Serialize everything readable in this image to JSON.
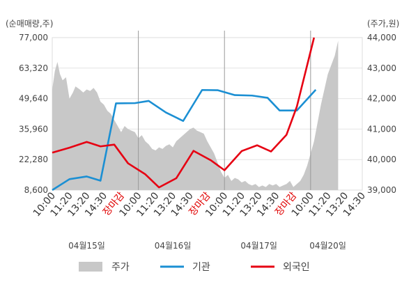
{
  "chart_data": {
    "type": "line",
    "left_axis_unit": "(순매매량,주)",
    "right_axis_unit": "(주가,원)",
    "left_axis": {
      "ticks": [
        8600,
        22280,
        35960,
        49640,
        63320,
        77000
      ],
      "tick_labels": [
        "8,600",
        "22,280",
        "35,960",
        "49,640",
        "63,320",
        "77,000"
      ],
      "ylim": [
        8600,
        77000
      ]
    },
    "right_axis": {
      "ticks": [
        39000,
        40000,
        41000,
        42000,
        43000,
        44000
      ],
      "tick_labels": [
        "39,000",
        "40,000",
        "41,000",
        "42,000",
        "43,000",
        "44,000"
      ],
      "ylim": [
        39000,
        44000
      ]
    },
    "x_ticks": [
      {
        "label": "10:00",
        "pos": 0,
        "red": false
      },
      {
        "label": "11:20",
        "pos": 1,
        "red": false
      },
      {
        "label": "13:20",
        "pos": 2,
        "red": false
      },
      {
        "label": "14:30",
        "pos": 3,
        "red": false
      },
      {
        "label": "장마감",
        "pos": 4,
        "red": true
      },
      {
        "label": "10:00",
        "pos": 5,
        "red": false
      },
      {
        "label": "11:20",
        "pos": 6,
        "red": false
      },
      {
        "label": "13:20",
        "pos": 7,
        "red": false
      },
      {
        "label": "14:30",
        "pos": 8,
        "red": false
      },
      {
        "label": "장마감",
        "pos": 9,
        "red": true
      },
      {
        "label": "10:00",
        "pos": 10,
        "red": false
      },
      {
        "label": "11:20",
        "pos": 11,
        "red": false
      },
      {
        "label": "13:20",
        "pos": 12,
        "red": false
      },
      {
        "label": "14:30",
        "pos": 13,
        "red": false
      },
      {
        "label": "장마감",
        "pos": 14,
        "red": true
      },
      {
        "label": "10:00",
        "pos": 15,
        "red": false
      },
      {
        "label": "11:20",
        "pos": 16,
        "red": false
      },
      {
        "label": "13:20",
        "pos": 17,
        "red": false
      },
      {
        "label": "14:30",
        "pos": 18,
        "red": false
      }
    ],
    "day_labels": [
      {
        "label": "04월15일",
        "pos": 2
      },
      {
        "label": "04월16일",
        "pos": 7
      },
      {
        "label": "04월17일",
        "pos": 12
      },
      {
        "label": "04월20일",
        "pos": 16
      }
    ],
    "day_separators": [
      5,
      10,
      15
    ],
    "series": [
      {
        "name": "주가",
        "axis": "right",
        "style": "area",
        "color": "#c8c8c8",
        "points": [
          [
            0.0,
            42.3
          ],
          [
            0.15,
            42.9
          ],
          [
            0.3,
            43.2
          ],
          [
            0.45,
            42.8
          ],
          [
            0.6,
            42.6
          ],
          [
            0.8,
            42.7
          ],
          [
            1.0,
            42.0
          ],
          [
            1.2,
            42.2
          ],
          [
            1.35,
            42.4
          ],
          [
            1.6,
            42.3
          ],
          [
            1.8,
            42.2
          ],
          [
            2.0,
            42.3
          ],
          [
            2.2,
            42.25
          ],
          [
            2.4,
            42.35
          ],
          [
            2.6,
            42.2
          ],
          [
            2.8,
            41.9
          ],
          [
            3.0,
            41.8
          ],
          [
            3.2,
            41.6
          ],
          [
            3.4,
            41.5
          ],
          [
            3.6,
            41.3
          ],
          [
            3.8,
            41.1
          ],
          [
            4.0,
            40.9
          ],
          [
            4.2,
            41.1
          ],
          [
            4.4,
            41.0
          ],
          [
            4.6,
            40.95
          ],
          [
            4.8,
            40.9
          ],
          [
            5.0,
            40.7
          ],
          [
            5.2,
            40.8
          ],
          [
            5.4,
            40.6
          ],
          [
            5.6,
            40.5
          ],
          [
            5.8,
            40.35
          ],
          [
            6.0,
            40.3
          ],
          [
            6.2,
            40.4
          ],
          [
            6.4,
            40.35
          ],
          [
            6.6,
            40.45
          ],
          [
            6.8,
            40.5
          ],
          [
            7.0,
            40.4
          ],
          [
            7.2,
            40.6
          ],
          [
            7.4,
            40.7
          ],
          [
            7.6,
            40.8
          ],
          [
            7.8,
            40.9
          ],
          [
            8.0,
            41.0
          ],
          [
            8.2,
            41.05
          ],
          [
            8.4,
            40.95
          ],
          [
            8.6,
            40.9
          ],
          [
            8.8,
            40.85
          ],
          [
            9.0,
            40.6
          ],
          [
            9.2,
            40.4
          ],
          [
            9.4,
            40.2
          ],
          [
            9.6,
            39.9
          ],
          [
            9.8,
            39.6
          ],
          [
            10.0,
            39.4
          ],
          [
            10.2,
            39.5
          ],
          [
            10.4,
            39.3
          ],
          [
            10.6,
            39.4
          ],
          [
            10.8,
            39.35
          ],
          [
            11.0,
            39.25
          ],
          [
            11.2,
            39.3
          ],
          [
            11.4,
            39.2
          ],
          [
            11.6,
            39.15
          ],
          [
            11.8,
            39.2
          ],
          [
            12.0,
            39.1
          ],
          [
            12.2,
            39.15
          ],
          [
            12.4,
            39.1
          ],
          [
            12.6,
            39.2
          ],
          [
            12.8,
            39.15
          ],
          [
            13.0,
            39.2
          ],
          [
            13.2,
            39.1
          ],
          [
            13.4,
            39.15
          ],
          [
            13.6,
            39.2
          ],
          [
            13.8,
            39.3
          ],
          [
            14.0,
            39.1
          ],
          [
            14.2,
            39.2
          ],
          [
            14.4,
            39.3
          ],
          [
            14.6,
            39.5
          ],
          [
            14.8,
            39.8
          ],
          [
            15.0,
            40.2
          ],
          [
            15.2,
            40.6
          ],
          [
            15.4,
            41.2
          ],
          [
            15.6,
            41.8
          ],
          [
            15.8,
            42.3
          ],
          [
            16.0,
            42.8
          ],
          [
            16.2,
            43.1
          ],
          [
            16.4,
            43.4
          ],
          [
            16.6,
            43.9
          ]
        ]
      },
      {
        "name": "기관",
        "axis": "left",
        "style": "line",
        "color": "#1b8fd3",
        "points": [
          [
            0.0,
            8600
          ],
          [
            1.0,
            13500
          ],
          [
            2.0,
            14700
          ],
          [
            2.8,
            12800
          ],
          [
            3.7,
            47500
          ],
          [
            4.8,
            47600
          ],
          [
            5.6,
            48600
          ],
          [
            6.6,
            43400
          ],
          [
            7.6,
            39600
          ],
          [
            8.7,
            53500
          ],
          [
            9.6,
            53400
          ],
          [
            10.6,
            51200
          ],
          [
            11.6,
            51000
          ],
          [
            12.5,
            50000
          ],
          [
            13.2,
            44300
          ],
          [
            14.2,
            44300
          ],
          [
            15.3,
            53600
          ]
        ]
      },
      {
        "name": "외국인",
        "axis": "left",
        "style": "line",
        "color": "#e60012",
        "points": [
          [
            0.0,
            25400
          ],
          [
            1.0,
            27600
          ],
          [
            2.0,
            30200
          ],
          [
            2.8,
            28200
          ],
          [
            3.6,
            29000
          ],
          [
            4.4,
            20600
          ],
          [
            5.4,
            15700
          ],
          [
            6.2,
            9800
          ],
          [
            7.2,
            13900
          ],
          [
            8.2,
            26200
          ],
          [
            9.2,
            22000
          ],
          [
            10.0,
            17500
          ],
          [
            11.0,
            26100
          ],
          [
            11.9,
            28700
          ],
          [
            12.7,
            25900
          ],
          [
            13.6,
            33400
          ],
          [
            14.2,
            46000
          ],
          [
            15.2,
            77000
          ]
        ]
      }
    ],
    "grid": true,
    "legend_position": "bottom"
  }
}
